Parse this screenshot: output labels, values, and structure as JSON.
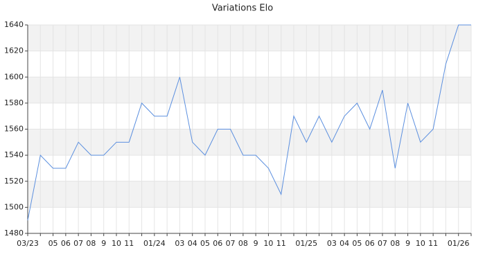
{
  "chart_data": {
    "type": "line",
    "title": "Variations Elo",
    "categories": [
      "03/23",
      null,
      "05",
      "06",
      "07",
      "08",
      "9",
      "10",
      "11",
      null,
      "01/24",
      null,
      "03",
      "04",
      "05",
      "06",
      "07",
      "08",
      "9",
      "10",
      "11",
      null,
      "01/25",
      null,
      "03",
      "04",
      "05",
      "06",
      "07",
      "08",
      "9",
      "10",
      "11",
      null,
      "01/26",
      null
    ],
    "series": [
      {
        "name": "Elo",
        "color": "#5b8fdf",
        "values": [
          1490,
          1540,
          1530,
          1530,
          1550,
          1540,
          1540,
          1550,
          1550,
          1580,
          1570,
          1570,
          1600,
          1550,
          1540,
          1560,
          1560,
          1540,
          1540,
          1530,
          1510,
          1570,
          1550,
          1570,
          1550,
          1570,
          1580,
          1560,
          1590,
          1530,
          1580,
          1550,
          1560,
          1610,
          1640,
          1640
        ]
      }
    ],
    "ylim": [
      1480,
      1640
    ],
    "yticks": [
      1480,
      1500,
      1520,
      1540,
      1560,
      1580,
      1600,
      1620,
      1640
    ],
    "grid": true
  }
}
